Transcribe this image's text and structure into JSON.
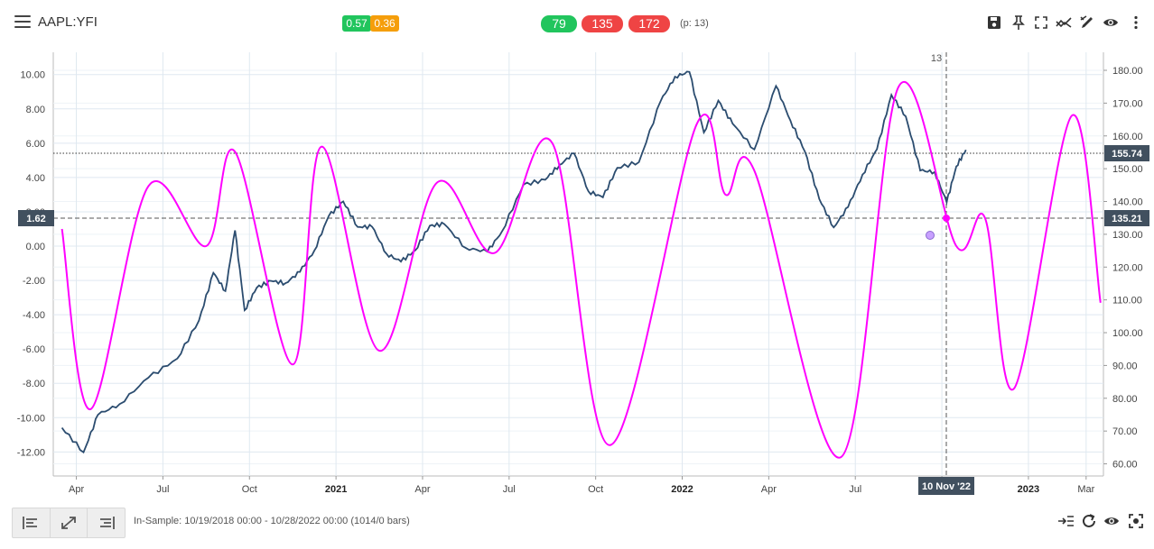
{
  "header": {
    "symbol": "AAPL:YFI",
    "badge_green": "0.57",
    "badge_orange": "0.36",
    "pill_green": "79",
    "pill_red1": "135",
    "pill_red2": "172",
    "period_text": "(p: 13)"
  },
  "toolbar_icons": [
    "save-icon",
    "pin-icon",
    "fullscreen-icon",
    "trend-icon",
    "draw-icon",
    "eye-icon",
    "more-icon"
  ],
  "colors": {
    "price": "#2b4c6f",
    "cycle": "#ff00ff",
    "green": "#21c55d",
    "orange": "#f59e0b",
    "red": "#ef4444",
    "label_bg": "#41505f"
  },
  "chart_data": {
    "type": "line",
    "left_axis": {
      "ticks": [
        "10.00",
        "8.00",
        "6.00",
        "4.00",
        "2.00",
        "0.00",
        "-2.00",
        "-4.00",
        "-6.00",
        "-8.00",
        "-10.00",
        "-12.00"
      ],
      "range": [
        -13.4,
        11.3
      ]
    },
    "right_axis": {
      "ticks": [
        "180.00",
        "170.00",
        "160.00",
        "150.00",
        "140.00",
        "130.00",
        "120.00",
        "110.00",
        "100.00",
        "90.00",
        "80.00",
        "70.00",
        "60.00"
      ],
      "range": [
        56.3,
        185.5
      ]
    },
    "x_axis": {
      "ticks": [
        "Apr",
        "Jul",
        "Oct",
        "2021",
        "Apr",
        "Jul",
        "Oct",
        "2022",
        "Apr",
        "Jul",
        "Oct",
        "2023",
        "Mar"
      ],
      "bold": [
        "2021",
        "2022",
        "2023"
      ]
    },
    "price_label": "155.74",
    "cycle_label_right": "135.21",
    "cycle_label_left": "1.62",
    "date_label": "10 Nov '22",
    "marker_label": "13",
    "series": [
      {
        "id": "price",
        "points": [
          [
            "Mar 2020",
            71
          ],
          [
            "Apr 2020",
            63
          ],
          [
            "Apr 2020",
            74
          ],
          [
            "May 2020",
            77
          ],
          [
            "Jun 2020",
            85
          ],
          [
            "Jul 2020",
            91
          ],
          [
            "Aug 2020",
            103
          ],
          [
            "Aug 2020",
            118
          ],
          [
            "Sep 2020",
            113
          ],
          [
            "Sep 2020",
            132
          ],
          [
            "Sep 2020",
            108
          ],
          [
            "Oct 2020",
            115
          ],
          [
            "Oct 2020",
            117
          ],
          [
            "Nov 2020",
            116
          ],
          [
            "Nov 2020",
            119
          ],
          [
            "Dec 2020",
            125
          ],
          [
            "Dec 2020",
            135
          ],
          [
            "Jan 2021",
            139
          ],
          [
            "Jan 2021",
            131
          ],
          [
            "Feb 2021",
            131
          ],
          [
            "Feb 2021",
            123
          ],
          [
            "Mar 2021",
            121
          ],
          [
            "Mar 2021",
            125
          ],
          [
            "Apr 2021",
            133
          ],
          [
            "Apr 2021",
            134
          ],
          [
            "May 2021",
            127
          ],
          [
            "Jun 2021",
            126
          ],
          [
            "Jun 2021",
            132
          ],
          [
            "Jul 2021",
            146
          ],
          [
            "Aug 2021",
            147
          ],
          [
            "Aug 2021",
            151
          ],
          [
            "Sep 2021",
            154
          ],
          [
            "Sep 2021",
            142
          ],
          [
            "Oct 2021",
            140
          ],
          [
            "Oct 2021",
            149
          ],
          [
            "Nov 2021",
            151
          ],
          [
            "Dec 2021",
            170
          ],
          [
            "Dec 2021",
            178
          ],
          [
            "Jan 2022",
            180
          ],
          [
            "Jan 2022",
            162
          ],
          [
            "Feb 2022",
            172
          ],
          [
            "Feb 2022",
            165
          ],
          [
            "Mar 2022",
            157
          ],
          [
            "Apr 2022",
            176
          ],
          [
            "Apr 2022",
            165
          ],
          [
            "May 2022",
            155
          ],
          [
            "May 2022",
            140
          ],
          [
            "Jun 2022",
            131
          ],
          [
            "Jun 2022",
            137
          ],
          [
            "Jul 2022",
            147
          ],
          [
            "Jul 2022",
            155
          ],
          [
            "Aug 2022",
            172
          ],
          [
            "Aug 2022",
            166
          ],
          [
            "Sep 2022",
            150
          ],
          [
            "Sep 2022",
            150
          ],
          [
            "Oct 2022",
            141
          ],
          [
            "Oct 2022",
            152
          ],
          [
            "Oct 2022",
            155.74
          ]
        ]
      },
      {
        "id": "cycle",
        "left_axis_points": [
          [
            "Mar 2020",
            1.0
          ],
          [
            "Apr 2020",
            -9.5
          ],
          [
            "Jun 2020",
            3.5
          ],
          [
            "Aug 2020",
            0.0
          ],
          [
            "Sep 2020",
            5.5
          ],
          [
            "Nov 2020",
            -6.9
          ],
          [
            "Dec 2020",
            5.8
          ],
          [
            "Feb 2021",
            -6.1
          ],
          [
            "Apr 2021",
            3.7
          ],
          [
            "Jun 2021",
            -0.4
          ],
          [
            "Aug 2021",
            6.0
          ],
          [
            "Oct 2021",
            -11.6
          ],
          [
            "Jan 2022",
            7.1
          ],
          [
            "Feb 2022",
            3.0
          ],
          [
            "Mar 2022",
            4.4
          ],
          [
            "Jun 2022",
            -12.3
          ],
          [
            "Aug 2022",
            9.3
          ],
          [
            "Oct 2022",
            0.0
          ],
          [
            "Nov 2022",
            1.62
          ],
          [
            "Dec 2022",
            -8.3
          ],
          [
            "Feb 2023",
            7.6
          ],
          [
            "Mar 2023",
            -3.3
          ]
        ]
      }
    ]
  },
  "footer": {
    "insample_text": "In-Sample: 10/19/2018 00:00 - 10/28/2022 00:00 (1014/0 bars)",
    "left_buttons": [
      "align-left-icon",
      "expand-icon",
      "align-right-icon"
    ],
    "right_icons": [
      "indent-icon",
      "refresh-icon",
      "eye-icon",
      "focus-icon"
    ]
  }
}
